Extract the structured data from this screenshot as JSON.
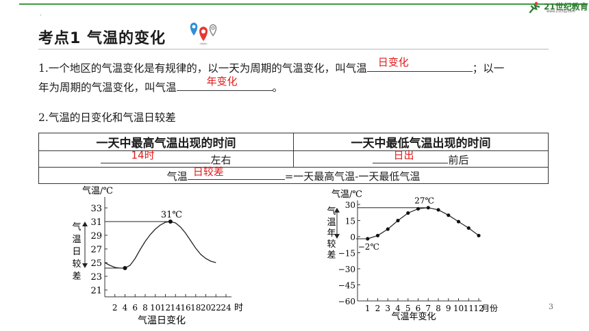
{
  "header": {
    "logo_text": "21世纪教育",
    "logo_sub": "www.21cnjy.com",
    "dot": "·"
  },
  "title": "考点1  气温的变化",
  "q1": {
    "part1": "1.一个地区的气温变化是有规律的，以一天为周期的气温变化，叫气温",
    "answer1": "日变化",
    "part2": "；以一",
    "part3": "年为周期的气温变化，叫气温",
    "answer2": "年变化",
    "part4": "。"
  },
  "q2": {
    "heading": "2.气温的日变化和气温日较差"
  },
  "table": {
    "header_left": "一天中最高气温出现的时间",
    "header_right": "一天中最低气温出现的时间",
    "answer_high": "14时",
    "suffix_high": "左右",
    "answer_low": "日出",
    "suffix_low": "前后",
    "formula_prefix": "气温",
    "formula_answer": "日较差",
    "formula_suffix": "=一天最高气温-一天最低气温"
  },
  "page_number": "3",
  "chart_data": [
    {
      "type": "line",
      "title": "气温日变化",
      "ylabel": "气温/℃",
      "xlabel": "时",
      "x_ticks": [
        "2",
        "4",
        "6",
        "8",
        "10",
        "12",
        "14",
        "16",
        "18",
        "20",
        "22",
        "24"
      ],
      "y_ticks": [
        "21",
        "23",
        "25",
        "27",
        "29",
        "31",
        "33"
      ],
      "ylim": [
        20,
        34
      ],
      "xlim": [
        0,
        24
      ],
      "annotation": "31℃",
      "range_label": "气温日较差",
      "points": [
        {
          "x": 0,
          "y": 25.0
        },
        {
          "x": 1,
          "y": 24.6
        },
        {
          "x": 2,
          "y": 24.3
        },
        {
          "x": 3,
          "y": 24.2
        },
        {
          "x": 4,
          "y": 24.2
        },
        {
          "x": 5,
          "y": 24.6
        },
        {
          "x": 6,
          "y": 25.6
        },
        {
          "x": 7,
          "y": 26.9
        },
        {
          "x": 8,
          "y": 28.1
        },
        {
          "x": 9,
          "y": 29.1
        },
        {
          "x": 10,
          "y": 29.9
        },
        {
          "x": 11,
          "y": 30.5
        },
        {
          "x": 12,
          "y": 30.9
        },
        {
          "x": 13,
          "y": 31.0
        },
        {
          "x": 14,
          "y": 30.8
        },
        {
          "x": 15,
          "y": 30.2
        },
        {
          "x": 16,
          "y": 29.3
        },
        {
          "x": 17,
          "y": 28.2
        },
        {
          "x": 18,
          "y": 27.1
        },
        {
          "x": 19,
          "y": 26.2
        },
        {
          "x": 20,
          "y": 25.6
        },
        {
          "x": 21,
          "y": 25.2
        },
        {
          "x": 22,
          "y": 25.0
        }
      ],
      "markers": [
        {
          "x": 4,
          "y": 24.2
        },
        {
          "x": 13,
          "y": 31.0
        }
      ]
    },
    {
      "type": "line",
      "title": "气温年变化",
      "ylabel": "气温/℃",
      "xlabel": "月份",
      "x_ticks": [
        "1",
        "2",
        "3",
        "4",
        "5",
        "6",
        "7",
        "8",
        "9",
        "10",
        "11",
        "12"
      ],
      "y_ticks": [
        "30",
        "15",
        "0",
        "−15",
        "−30",
        "−45",
        "−60"
      ],
      "ylim": [
        -60,
        30
      ],
      "xlim": [
        0,
        12
      ],
      "annotations": [
        "27℃",
        "−2℃"
      ],
      "range_label": "气温年较差",
      "points": [
        {
          "x": 1,
          "y": -2
        },
        {
          "x": 2,
          "y": 1
        },
        {
          "x": 3,
          "y": 7
        },
        {
          "x": 4,
          "y": 15
        },
        {
          "x": 5,
          "y": 22
        },
        {
          "x": 6,
          "y": 26
        },
        {
          "x": 7,
          "y": 27
        },
        {
          "x": 8,
          "y": 25
        },
        {
          "x": 9,
          "y": 20
        },
        {
          "x": 10,
          "y": 14
        },
        {
          "x": 11,
          "y": 8
        },
        {
          "x": 12,
          "y": 1
        }
      ]
    }
  ]
}
